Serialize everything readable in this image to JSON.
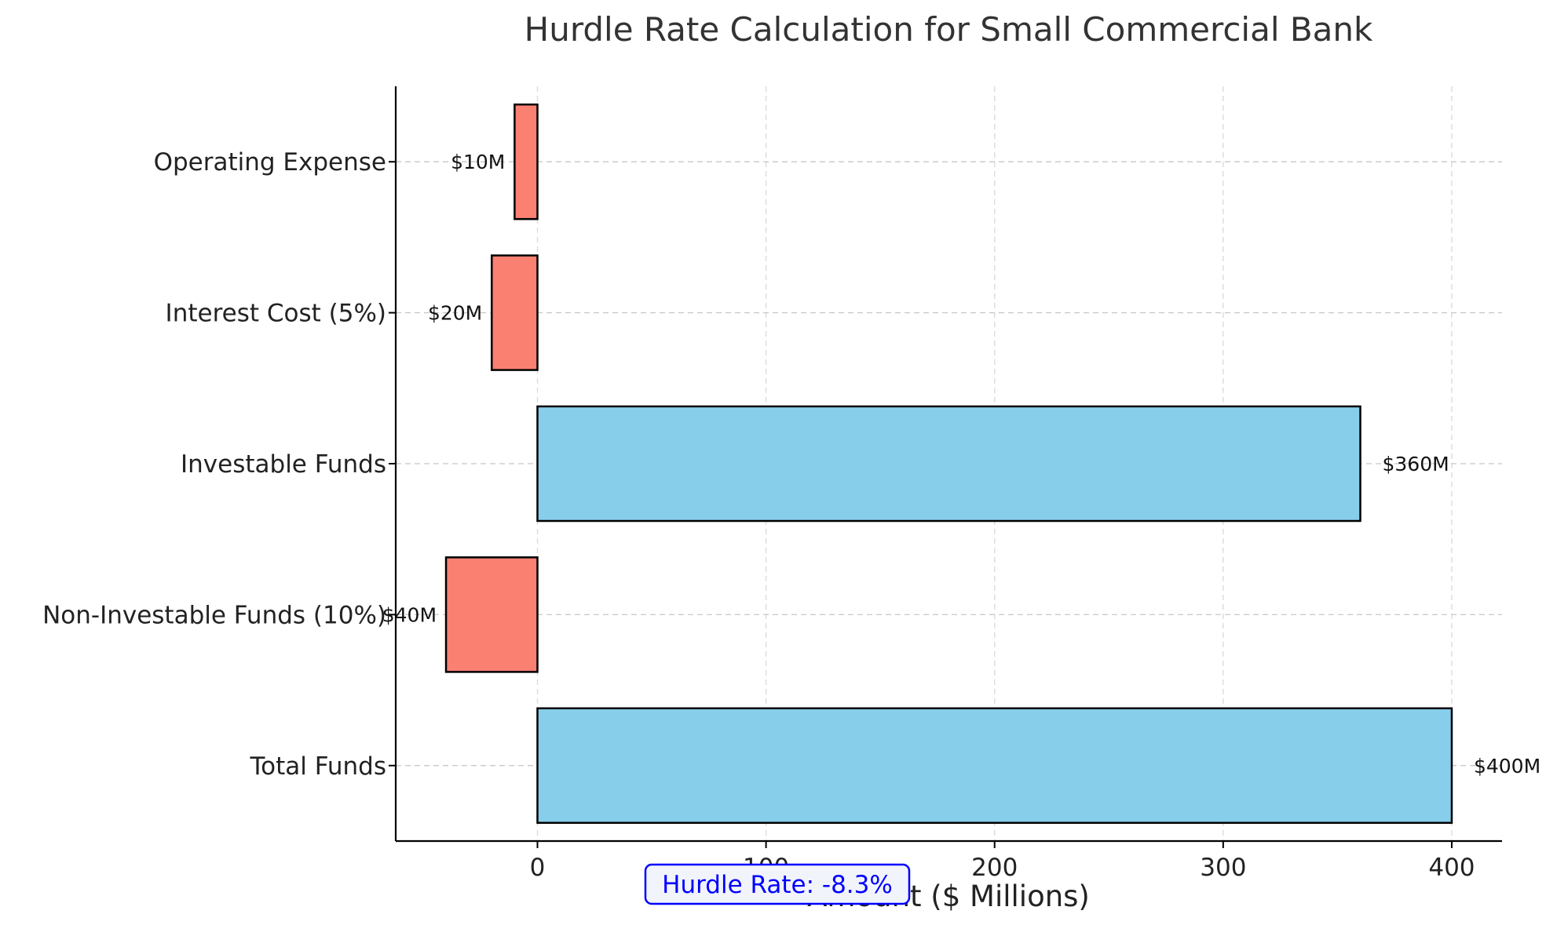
{
  "chart_data": {
    "type": "bar",
    "orientation": "horizontal",
    "title": "Hurdle Rate Calculation for Small Commercial Bank",
    "xlabel": "Amount ($ Millions)",
    "ylabel": "",
    "categories": [
      "Total Funds",
      "Non-Investable Funds (10%)",
      "Investable Funds",
      "Interest Cost (5%)",
      "Operating Expense"
    ],
    "values": [
      400,
      -40,
      360,
      -20,
      -10
    ],
    "data_labels": [
      "$400M",
      "$40M",
      "$360M",
      "$20M",
      "$10M"
    ],
    "bar_colors": [
      "#87ceeb",
      "#fa8072",
      "#87ceeb",
      "#fa8072",
      "#fa8072"
    ],
    "xlim": [
      -62,
      422
    ],
    "xticks": [
      0,
      100,
      200,
      300,
      400
    ],
    "grid": true,
    "annotation": {
      "text": "Hurdle Rate: -8.3%",
      "color": "#0000ff"
    }
  }
}
